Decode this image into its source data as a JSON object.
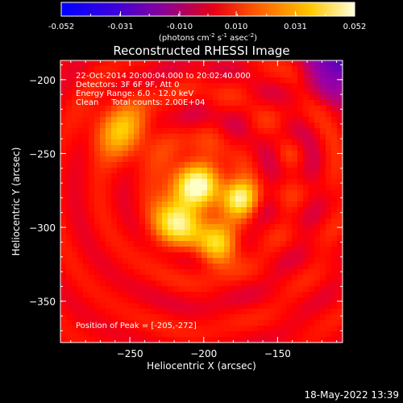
{
  "title": "Reconstructed RHESSI Image",
  "timestamp": "18-May-2022 13:39",
  "colorbar": {
    "ticks": [
      "-0.052",
      "-0.031",
      "-0.010",
      "0.010",
      "0.031",
      "0.052"
    ],
    "tick_values": [
      -0.052,
      -0.031,
      -0.01,
      0.01,
      0.031,
      0.052
    ],
    "range": [
      -0.052,
      0.052
    ],
    "units_text": "(photons cm",
    "units_sup1": "-2",
    "units_mid1": " s",
    "units_sup2": "-1",
    "units_mid2": " asec",
    "units_sup3": "-2",
    "units_end": ")"
  },
  "info": {
    "line1": "22-Oct-2014 20:00:04.000 to 20:02:40.000",
    "line2": "Detectors: 3F 6F 9F, Att 0",
    "line3": "Energy Range: 6.0 - 12.0 keV",
    "line4": "Clean     Total counts: 2.00E+04",
    "peak": "Position of Peak = [-205,-272]"
  },
  "chart_data": {
    "type": "heatmap",
    "title": "Reconstructed RHESSI Image",
    "xlabel": "Heliocentric X (arcsec)",
    "ylabel": "Heliocentric Y (arcsec)",
    "xlim": [
      -297,
      -106
    ],
    "ylim": [
      -378,
      -187
    ],
    "x_ticks": [
      -250,
      -200,
      -150
    ],
    "y_ticks": [
      -200,
      -250,
      -300,
      -350
    ],
    "x_tick_labels": [
      "−250",
      "−200",
      "−150"
    ],
    "y_tick_labels": [
      "−200",
      "−250",
      "−300",
      "−350"
    ],
    "peak_position": [
      -205,
      -272
    ],
    "colormap": [
      "#0000ff",
      "#5000c8",
      "#a000a0",
      "#ff0000",
      "#ff7800",
      "#ffd800",
      "#ffffc8"
    ],
    "sources": [
      {
        "x": -205,
        "y": -272,
        "peak": 1.0,
        "sigma": 12
      },
      {
        "x": -175,
        "y": -280,
        "peak": 0.85,
        "sigma": 8
      },
      {
        "x": -218,
        "y": -297,
        "peak": 0.8,
        "sigma": 11
      },
      {
        "x": -190,
        "y": -312,
        "peak": 0.75,
        "sigma": 9
      },
      {
        "x": -255,
        "y": -235,
        "peak": 0.55,
        "sigma": 13
      }
    ]
  }
}
